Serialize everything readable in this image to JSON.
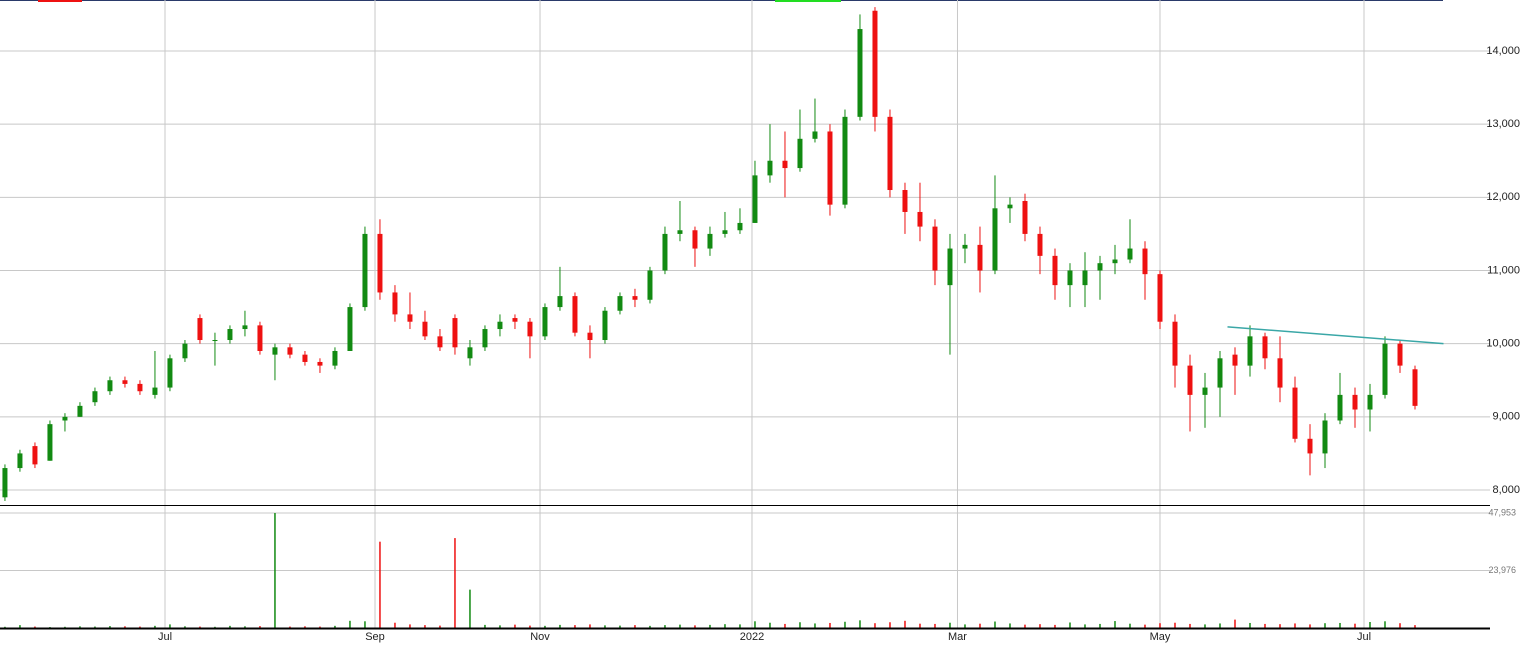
{
  "chart_data": {
    "type": "candlestick",
    "up_color": "#128a12",
    "down_color": "#ee1111",
    "grid": true,
    "xlim": [
      -0.33,
      99
    ],
    "xticks": [
      {
        "value": 10.67,
        "label": "Jul"
      },
      {
        "value": 24.67,
        "label": "Sep"
      },
      {
        "value": 35.67,
        "label": "Nov"
      },
      {
        "value": 49.8,
        "label": "2022"
      },
      {
        "value": 63.5,
        "label": "Mar"
      },
      {
        "value": 77,
        "label": "May"
      },
      {
        "value": 90.6,
        "label": "Jul"
      }
    ],
    "ylim": [
      7795,
      14697
    ],
    "yticks": [
      {
        "value": 8000,
        "label": "8,000"
      },
      {
        "value": 9000,
        "label": "9,000"
      },
      {
        "value": 10000,
        "label": "10,000"
      },
      {
        "value": 11000,
        "label": "11,000"
      },
      {
        "value": 12000,
        "label": "12,000"
      },
      {
        "value": 13000,
        "label": "13,000"
      },
      {
        "value": 14000,
        "label": "14,000"
      }
    ],
    "volume_ylim": [
      0,
      51300
    ],
    "volume_ticks": [
      {
        "value": 23976,
        "label": "23,976"
      },
      {
        "value": 47953,
        "label": "47,953"
      }
    ],
    "candles": [
      [
        7900,
        8350,
        7850,
        8300
      ],
      [
        8300,
        8550,
        8250,
        8500
      ],
      [
        8600,
        8650,
        8300,
        8350
      ],
      [
        8400,
        8950,
        8400,
        8900
      ],
      [
        8950,
        9050,
        8800,
        9000
      ],
      [
        9000,
        9200,
        9000,
        9150
      ],
      [
        9200,
        9400,
        9150,
        9350
      ],
      [
        9350,
        9550,
        9300,
        9500
      ],
      [
        9500,
        9550,
        9400,
        9450
      ],
      [
        9450,
        9500,
        9300,
        9350
      ],
      [
        9300,
        9900,
        9250,
        9400
      ],
      [
        9400,
        9850,
        9350,
        9800
      ],
      [
        9800,
        10050,
        9750,
        10000
      ],
      [
        10350,
        10400,
        10000,
        10050
      ],
      [
        10050,
        10150,
        9700,
        10050
      ],
      [
        10050,
        10250,
        10000,
        10200
      ],
      [
        10200,
        10450,
        10100,
        10250
      ],
      [
        10250,
        10300,
        9850,
        9900
      ],
      [
        9850,
        10000,
        9500,
        9950
      ],
      [
        9950,
        10000,
        9800,
        9850
      ],
      [
        9850,
        9900,
        9700,
        9750
      ],
      [
        9750,
        9800,
        9600,
        9700
      ],
      [
        9700,
        9950,
        9650,
        9900
      ],
      [
        9900,
        10550,
        9900,
        10500
      ],
      [
        10500,
        11600,
        10450,
        11500
      ],
      [
        11500,
        11700,
        10600,
        10700
      ],
      [
        10700,
        10800,
        10300,
        10400
      ],
      [
        10400,
        10700,
        10200,
        10300
      ],
      [
        10300,
        10450,
        10050,
        10100
      ],
      [
        10100,
        10200,
        9900,
        9950
      ],
      [
        10350,
        10400,
        9850,
        9950
      ],
      [
        9800,
        10050,
        9700,
        9950
      ],
      [
        9950,
        10250,
        9900,
        10200
      ],
      [
        10200,
        10400,
        10100,
        10300
      ],
      [
        10350,
        10400,
        10200,
        10300
      ],
      [
        10300,
        10350,
        9800,
        10100
      ],
      [
        10100,
        10550,
        10050,
        10500
      ],
      [
        10500,
        11050,
        10450,
        10650
      ],
      [
        10650,
        10700,
        10100,
        10150
      ],
      [
        10150,
        10250,
        9800,
        10050
      ],
      [
        10050,
        10500,
        10000,
        10450
      ],
      [
        10450,
        10700,
        10400,
        10650
      ],
      [
        10650,
        10750,
        10500,
        10600
      ],
      [
        10600,
        11050,
        10550,
        11000
      ],
      [
        11000,
        11600,
        10950,
        11500
      ],
      [
        11500,
        11950,
        11400,
        11550
      ],
      [
        11550,
        11600,
        11050,
        11300
      ],
      [
        11300,
        11600,
        11200,
        11500
      ],
      [
        11500,
        11800,
        11450,
        11550
      ],
      [
        11550,
        11850,
        11500,
        11650
      ],
      [
        11650,
        12500,
        11650,
        12300
      ],
      [
        12300,
        13000,
        12200,
        12500
      ],
      [
        12500,
        12900,
        12000,
        12400
      ],
      [
        12400,
        13200,
        12350,
        12800
      ],
      [
        12800,
        13350,
        12750,
        12900
      ],
      [
        12900,
        13000,
        11750,
        11900
      ],
      [
        11900,
        13200,
        11850,
        13100
      ],
      [
        13100,
        14500,
        13050,
        14300
      ],
      [
        14550,
        14600,
        12900,
        13100
      ],
      [
        13100,
        13200,
        12000,
        12100
      ],
      [
        12100,
        12200,
        11500,
        11800
      ],
      [
        11800,
        12200,
        11400,
        11600
      ],
      [
        11600,
        11700,
        10800,
        11000
      ],
      [
        10800,
        11500,
        9850,
        11300
      ],
      [
        11300,
        11500,
        11100,
        11350
      ],
      [
        11350,
        11600,
        10700,
        11000
      ],
      [
        11000,
        12300,
        10950,
        11850
      ],
      [
        11850,
        12000,
        11650,
        11900
      ],
      [
        11950,
        12050,
        11400,
        11500
      ],
      [
        11500,
        11600,
        10950,
        11200
      ],
      [
        11200,
        11300,
        10600,
        10800
      ],
      [
        10800,
        11100,
        10500,
        11000
      ],
      [
        10800,
        11250,
        10500,
        11000
      ],
      [
        11000,
        11200,
        10600,
        11100
      ],
      [
        11100,
        11350,
        10950,
        11150
      ],
      [
        11150,
        11700,
        11100,
        11300
      ],
      [
        11300,
        11400,
        10600,
        10950
      ],
      [
        10950,
        11000,
        10200,
        10300
      ],
      [
        10300,
        10400,
        9400,
        9700
      ],
      [
        9700,
        9850,
        8800,
        9300
      ],
      [
        9300,
        9600,
        8850,
        9400
      ],
      [
        9400,
        9900,
        9000,
        9800
      ],
      [
        9850,
        9950,
        9300,
        9700
      ],
      [
        9700,
        10250,
        9550,
        10100
      ],
      [
        10100,
        10150,
        9650,
        9800
      ],
      [
        9800,
        10100,
        9200,
        9400
      ],
      [
        9400,
        9550,
        8650,
        8700
      ],
      [
        8700,
        8900,
        8200,
        8500
      ],
      [
        8500,
        9050,
        8300,
        8950
      ],
      [
        8950,
        9600,
        8900,
        9300
      ],
      [
        9300,
        9400,
        8850,
        9100
      ],
      [
        9100,
        9450,
        8800,
        9300
      ],
      [
        9300,
        10100,
        9250,
        10000
      ],
      [
        10000,
        10050,
        9600,
        9700
      ],
      [
        9650,
        9700,
        9100,
        9150
      ]
    ],
    "volumes": [
      500,
      1200,
      600,
      400,
      500,
      700,
      600,
      800,
      700,
      600,
      900,
      1500,
      700,
      600,
      500,
      900,
      700,
      800,
      47953,
      600,
      700,
      600,
      900,
      3000,
      2800,
      36000,
      2200,
      1500,
      1200,
      1000,
      37500,
      16000,
      1300,
      1100,
      1400,
      1000,
      900,
      1300,
      1200,
      1500,
      1100,
      1000,
      1200,
      900,
      1200,
      1400,
      1100,
      1300,
      1600,
      1500,
      2800,
      2200,
      1700,
      2400,
      1900,
      2100,
      2600,
      3200,
      2000,
      2400,
      3000,
      1800,
      1700,
      2200,
      1500,
      1800,
      2700,
      1900,
      1400,
      1600,
      1300,
      2300,
      1500,
      1700,
      2900,
      1800,
      1400,
      2000,
      2200,
      1700,
      1500,
      1900,
      3500,
      2100,
      1700,
      1600,
      1900,
      1500,
      2000,
      2100,
      1800,
      2500,
      2800,
      2000,
      1200
    ],
    "trendline": {
      "color": "#3aa7a7",
      "x": [
        81.5,
        95.9
      ],
      "y": [
        10230,
        10000
      ]
    }
  }
}
